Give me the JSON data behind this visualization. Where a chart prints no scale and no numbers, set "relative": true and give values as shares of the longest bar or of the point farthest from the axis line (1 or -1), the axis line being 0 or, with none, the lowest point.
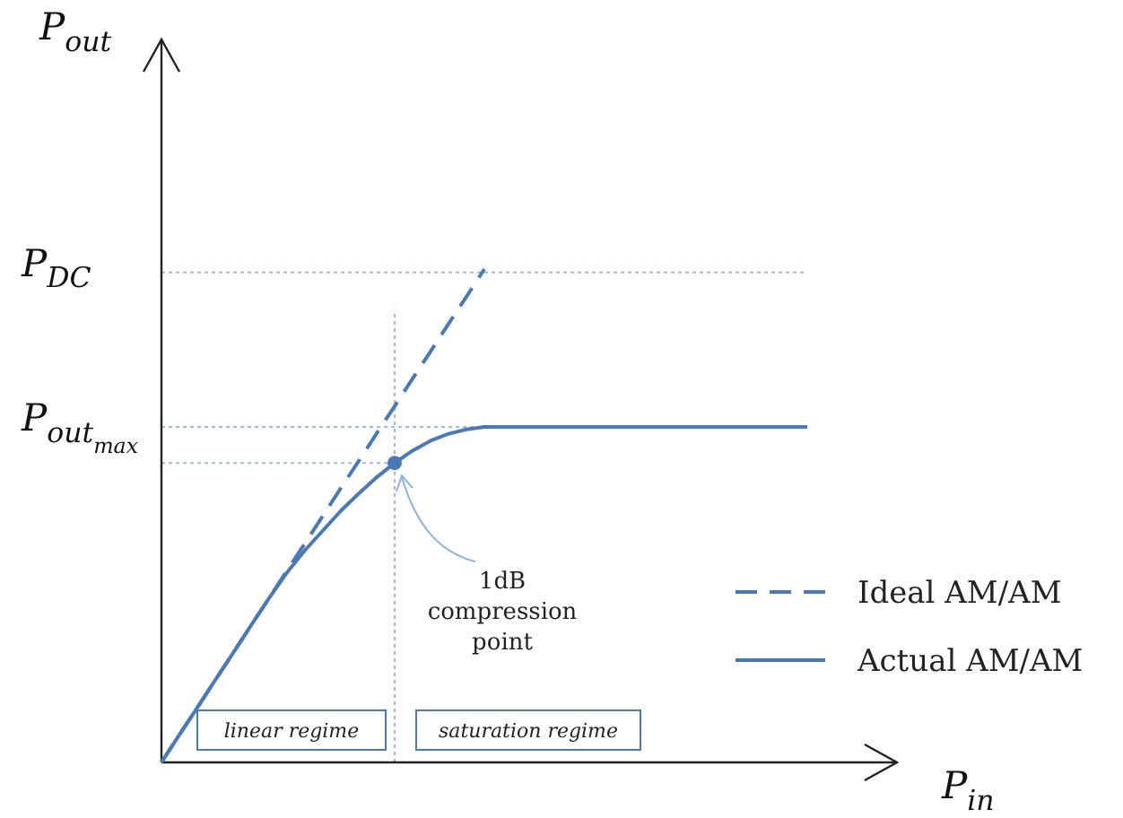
{
  "chart_data": {
    "type": "line",
    "relative": true,
    "xlabel": "P$_{in}$",
    "legend": "bottom right",
    "categories": [
      null,
      null,
      null,
      null,
      null,
      null,
      null,
      null,
      null,
      null,
      null,
      null,
      null,
      null,
      null,
      null,
      null,
      null,
      null,
      null,
      null,
      null,
      null,
      null,
      null,
      null,
      null,
      null,
      null,
      null,
      null,
      null,
      null,
      null,
      null,
      null,
      null
    ],
    "series": [
      {
        "name": "Ideal AM/AM",
        "color": "#4a7ab5",
        "line_style": "dashed",
        "marker": "none",
        "values": [
          0,
          0.056,
          0.111,
          0.167,
          0.222,
          0.278,
          0.333,
          0.389,
          0.444,
          0.5,
          0.556,
          0.611,
          0.667,
          0.722,
          0.778,
          0.833,
          0.889,
          0.944,
          1,
          null,
          null,
          null,
          null,
          null,
          null,
          null,
          null,
          null,
          null,
          null,
          null,
          null,
          null,
          null,
          null,
          null,
          null
        ]
      },
      {
        "name": "Actual AM/AM",
        "color": "#4a7ab5",
        "line_style": "solid",
        "marker": "none",
        "values": [
          0,
          0.056,
          0.111,
          0.167,
          0.222,
          0.278,
          0.333,
          0.385,
          0.43,
          0.47,
          0.51,
          0.545,
          0.578,
          0.607,
          0.632,
          0.652,
          0.666,
          0.675,
          0.68,
          0.68,
          0.68,
          0.68,
          0.68,
          0.68,
          0.68,
          0.68,
          0.68,
          0.68,
          0.68,
          0.68,
          0.68,
          0.68,
          0.68,
          0.68,
          0.68,
          0.68,
          0.68
        ]
      }
    ],
    "ref_lines": [
      {
        "axis": "y",
        "value": 0.993,
        "label": "P$_{DC}$",
        "color": "#9dbde0",
        "line_style": "dotted"
      },
      {
        "axis": "y",
        "value": 0.68,
        "label": "P$_{out}$$_{max}$",
        "color": "#9dbde0",
        "line_style": "dotted"
      },
      {
        "axis": "y",
        "value": 0.607,
        "color": "#9dbde0",
        "line_style": "dotted"
      }
    ],
    "annotations": [
      "1dB compression point",
      "linear regime",
      "saturation regime",
      "P$_{out}$"
    ]
  }
}
